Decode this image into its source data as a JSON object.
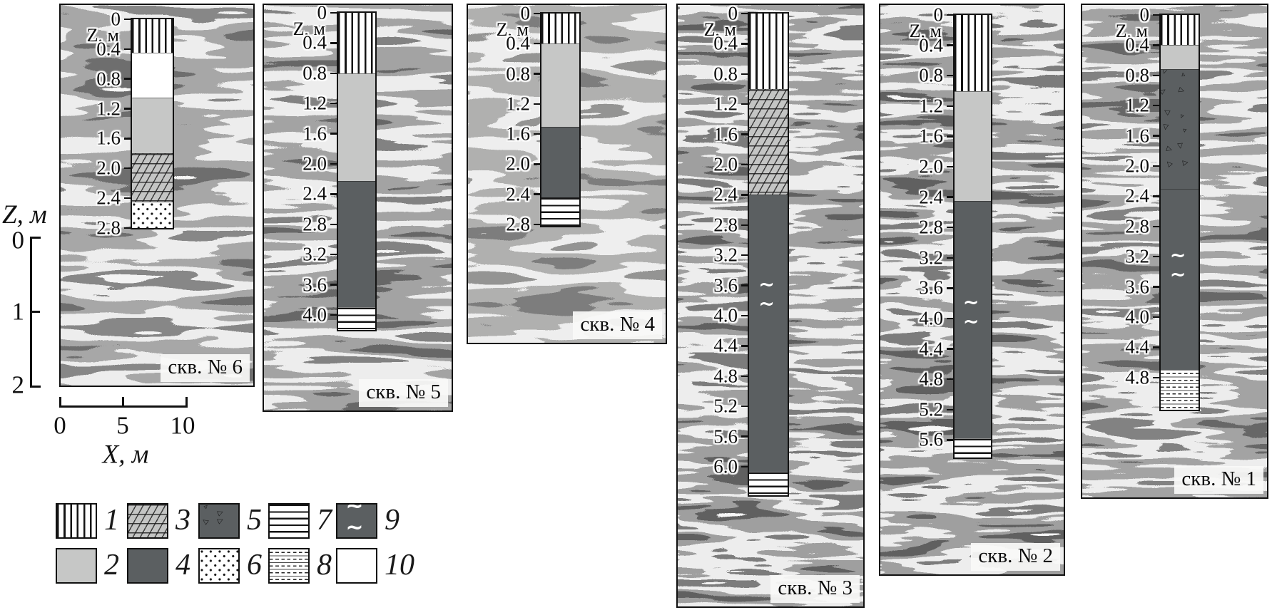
{
  "axes": {
    "z_label": "Z, м",
    "x_label": "X, м",
    "z_ticks": [
      "0",
      "1",
      "2"
    ],
    "x_ticks": [
      "0",
      "5",
      "10"
    ]
  },
  "panels": [
    {
      "well_label": "скв. № 6",
      "z_unit_label": "Z, м",
      "tick_step": 0.4,
      "tick_end": 2.8,
      "column_depth_m": 2.8,
      "water_table_depth_m": null,
      "layers": [
        {
          "pattern": 1,
          "from_m": 0,
          "to_m": 0.45
        },
        {
          "pattern": 10,
          "from_m": 0.45,
          "to_m": 1.05
        },
        {
          "pattern": 2,
          "from_m": 1.05,
          "to_m": 1.8
        },
        {
          "pattern": 3,
          "from_m": 1.8,
          "to_m": 2.45
        },
        {
          "pattern": 6,
          "from_m": 2.45,
          "to_m": 2.8
        }
      ]
    },
    {
      "well_label": "скв. № 5",
      "z_unit_label": "Z, м",
      "tick_step": 0.4,
      "tick_end": 4.0,
      "column_depth_m": 4.2,
      "water_table_depth_m": null,
      "layers": [
        {
          "pattern": 1,
          "from_m": 0,
          "to_m": 0.8
        },
        {
          "pattern": 2,
          "from_m": 0.8,
          "to_m": 2.23
        },
        {
          "pattern": 4,
          "from_m": 2.23,
          "to_m": 3.9
        },
        {
          "pattern": 7,
          "from_m": 3.9,
          "to_m": 4.2
        }
      ]
    },
    {
      "well_label": "скв. № 4",
      "z_unit_label": "Z, м",
      "tick_step": 0.4,
      "tick_end": 2.8,
      "column_depth_m": 2.82,
      "water_table_depth_m": null,
      "layers": [
        {
          "pattern": 1,
          "from_m": 0,
          "to_m": 0.4
        },
        {
          "pattern": 2,
          "from_m": 0.4,
          "to_m": 1.5
        },
        {
          "pattern": 4,
          "from_m": 1.5,
          "to_m": 2.44
        },
        {
          "pattern": 7,
          "from_m": 2.44,
          "to_m": 2.82
        }
      ]
    },
    {
      "well_label": "скв. № 3",
      "z_unit_label": "Z, м",
      "tick_step": 0.4,
      "tick_end": 6.0,
      "column_depth_m": 6.38,
      "water_table_depth_m": 3.6,
      "layers": [
        {
          "pattern": 1,
          "from_m": 0,
          "to_m": 1.0
        },
        {
          "pattern": 3,
          "from_m": 1.0,
          "to_m": 2.4
        },
        {
          "pattern": 4,
          "from_m": 2.4,
          "to_m": 6.07
        },
        {
          "pattern": 7,
          "from_m": 6.07,
          "to_m": 6.38
        }
      ]
    },
    {
      "well_label": "скв. № 2",
      "z_unit_label": "Z, м",
      "tick_step": 0.4,
      "tick_end": 5.6,
      "column_depth_m": 5.83,
      "water_table_depth_m": 3.8,
      "layers": [
        {
          "pattern": 1,
          "from_m": 0,
          "to_m": 1.0
        },
        {
          "pattern": 2,
          "from_m": 1.0,
          "to_m": 2.45
        },
        {
          "pattern": 4,
          "from_m": 2.45,
          "to_m": 5.58
        },
        {
          "pattern": 7,
          "from_m": 5.58,
          "to_m": 5.83
        }
      ]
    },
    {
      "well_label": "скв. № 1",
      "z_unit_label": "Z, м",
      "tick_step": 0.4,
      "tick_end": 4.8,
      "column_depth_m": 5.23,
      "water_table_depth_m": 3.2,
      "layers": [
        {
          "pattern": 1,
          "from_m": 0,
          "to_m": 0.4
        },
        {
          "pattern": 2,
          "from_m": 0.4,
          "to_m": 0.72
        },
        {
          "pattern": 5,
          "from_m": 0.72,
          "to_m": 2.3
        },
        {
          "pattern": 4,
          "from_m": 2.3,
          "to_m": 4.7
        },
        {
          "pattern": 8,
          "from_m": 4.7,
          "to_m": 5.23
        }
      ]
    }
  ],
  "legend": {
    "items": [
      {
        "num": "1",
        "pattern": 1,
        "key": "vertical-hachure"
      },
      {
        "num": "3",
        "pattern": 3,
        "key": "diagonal-hachure"
      },
      {
        "num": "5",
        "pattern": 5,
        "key": "triangle-inclusions"
      },
      {
        "num": "7",
        "pattern": 7,
        "key": "horizontal-lines"
      },
      {
        "num": "9",
        "pattern": 9,
        "key": "water-table-tilde"
      },
      {
        "num": "2",
        "pattern": 2,
        "key": "light-gray"
      },
      {
        "num": "4",
        "pattern": 4,
        "key": "dark-gray"
      },
      {
        "num": "6",
        "pattern": 6,
        "key": "dots"
      },
      {
        "num": "8",
        "pattern": 8,
        "key": "dashed-horizontal-lines"
      },
      {
        "num": "10",
        "pattern": 10,
        "key": "blank-white"
      }
    ]
  },
  "colors": {
    "ink": "#111111",
    "light_gray": "#c6c7c6",
    "dark_gray": "#5b5f61",
    "panel_bg": "#f6f6f4"
  }
}
